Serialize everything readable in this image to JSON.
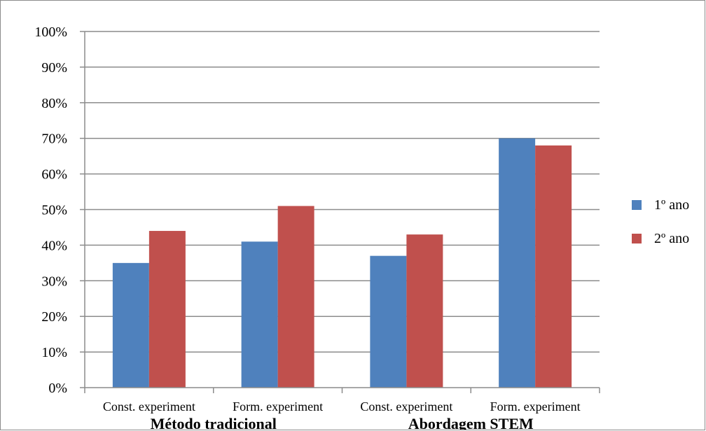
{
  "chart_data": {
    "type": "bar",
    "categories": [
      "Const. experiment",
      "Form. experiment",
      "Const. experiment",
      "Form. experiment"
    ],
    "groups": [
      {
        "label": "Método tradicional",
        "categories": [
          0,
          1
        ]
      },
      {
        "label": "Abordagem STEM",
        "categories": [
          2,
          3
        ]
      }
    ],
    "series": [
      {
        "name": "1º ano",
        "color": "#4F81BD",
        "values": [
          35,
          41,
          37,
          70
        ]
      },
      {
        "name": "2º ano",
        "color": "#C0504D",
        "values": [
          44,
          51,
          43,
          68
        ]
      }
    ],
    "ylim": [
      0,
      100
    ],
    "yticks": [
      "0%",
      "10%",
      "20%",
      "30%",
      "40%",
      "50%",
      "60%",
      "70%",
      "80%",
      "90%",
      "100%"
    ],
    "grid": true,
    "legend_position": "right"
  }
}
